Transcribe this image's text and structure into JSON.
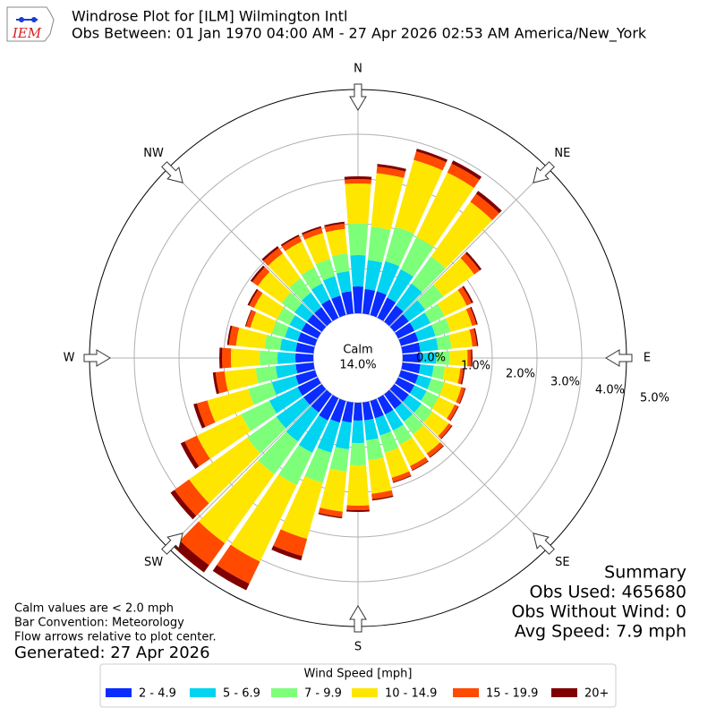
{
  "chart_data": {
    "type": "windrose",
    "title": "Windrose Plot for [ILM] Wilmington Intl",
    "subtitle": "Obs Between: 01 Jan 1970 04:00 AM - 27 Apr 2026 02:53 AM America/New_York",
    "logo_text": "IEM",
    "categories": [
      null,
      null,
      null,
      null,
      null,
      null,
      null,
      null,
      null,
      null,
      null,
      null,
      null,
      null,
      null,
      null,
      null,
      null,
      null,
      null,
      null,
      null,
      null,
      null,
      null,
      null,
      null,
      null,
      null,
      null,
      null,
      null,
      null,
      null,
      null,
      null
    ],
    "compass_labels": [
      "N",
      "NE",
      "E",
      "SE",
      "S",
      "SW",
      "W",
      "NW"
    ],
    "calm_label": "Calm",
    "calm_value_label": "14.0%",
    "ylim": [
      0,
      5
    ],
    "yticks": [
      {
        "value": 0,
        "label": "0.0%"
      },
      {
        "value": 1,
        "label": "1.0%"
      },
      {
        "value": 2,
        "label": "2.0%"
      },
      {
        "value": 3,
        "label": "3.0%"
      },
      {
        "value": 4,
        "label": "4.0%"
      },
      {
        "value": 5,
        "label": "5.0%"
      }
    ],
    "grid": true,
    "legend_title": "Wind Speed [mph]",
    "legend_position": "bottom",
    "series": [
      {
        "name": "2 - 4.9",
        "color": "#0a2cff",
        "values": [
          0.6,
          0.55,
          0.55,
          0.5,
          0.45,
          0.4,
          0.4,
          0.4,
          0.4,
          0.4,
          0.4,
          0.4,
          0.4,
          0.4,
          0.4,
          0.4,
          0.4,
          0.4,
          0.4,
          0.45,
          0.5,
          0.55,
          0.5,
          0.5,
          0.5,
          0.45,
          0.4,
          0.4,
          0.4,
          0.4,
          0.4,
          0.4,
          0.4,
          0.45,
          0.45,
          0.5
        ]
      },
      {
        "name": "5 - 6.9",
        "color": "#00d4f0",
        "values": [
          0.7,
          0.65,
          0.7,
          0.7,
          0.6,
          0.45,
          0.4,
          0.4,
          0.4,
          0.35,
          0.3,
          0.3,
          0.3,
          0.35,
          0.35,
          0.4,
          0.4,
          0.45,
          0.5,
          0.6,
          0.7,
          0.8,
          0.8,
          0.75,
          0.7,
          0.55,
          0.45,
          0.4,
          0.35,
          0.3,
          0.3,
          0.35,
          0.4,
          0.4,
          0.45,
          0.45
        ]
      },
      {
        "name": "7 - 9.9",
        "color": "#7dff7a",
        "values": [
          0.7,
          0.75,
          0.8,
          0.8,
          0.75,
          0.5,
          0.35,
          0.35,
          0.3,
          0.3,
          0.25,
          0.3,
          0.3,
          0.3,
          0.35,
          0.35,
          0.4,
          0.45,
          0.5,
          0.5,
          0.7,
          0.8,
          0.9,
          0.8,
          0.7,
          0.55,
          0.45,
          0.4,
          0.35,
          0.3,
          0.3,
          0.35,
          0.4,
          0.4,
          0.4,
          0.4
        ]
      },
      {
        "name": "10 - 14.9",
        "color": "#ffe600",
        "values": [
          0.9,
          1.2,
          1.55,
          1.6,
          1.5,
          0.85,
          0.55,
          0.5,
          0.47,
          0.4,
          0.35,
          0.4,
          0.4,
          0.45,
          0.53,
          0.53,
          0.58,
          0.75,
          0.9,
          0.9,
          1.3,
          1.9,
          1.9,
          1.6,
          1.1,
          0.95,
          0.7,
          0.64,
          0.64,
          0.5,
          0.58,
          0.66,
          0.68,
          0.64,
          0.6,
          0.55
        ]
      },
      {
        "name": "15 - 19.9",
        "color": "#ff4a00",
        "values": [
          0.1,
          0.15,
          0.2,
          0.22,
          0.22,
          0.15,
          0.12,
          0.1,
          0.1,
          0.08,
          0.07,
          0.08,
          0.08,
          0.08,
          0.1,
          0.1,
          0.1,
          0.12,
          0.1,
          0.12,
          0.4,
          0.55,
          0.6,
          0.4,
          0.3,
          0.24,
          0.2,
          0.2,
          0.16,
          0.1,
          0.12,
          0.15,
          0.15,
          0.13,
          0.12,
          0.12
        ]
      },
      {
        "name": "20+",
        "color": "#800000",
        "values": [
          0.06,
          0.06,
          0.06,
          0.08,
          0.08,
          0.05,
          0.04,
          0.03,
          0.03,
          0.03,
          0.03,
          0.02,
          0.02,
          0.02,
          0.02,
          0.02,
          0.02,
          0.03,
          0.04,
          0.03,
          0.1,
          0.16,
          0.2,
          0.11,
          0.1,
          0.08,
          0.06,
          0.06,
          0.04,
          0.02,
          0.04,
          0.05,
          0.05,
          0.04,
          0.04,
          0.04
        ]
      }
    ],
    "notes": [
      "Calm values are < 2.0 mph",
      "Bar Convention: Meteorology",
      "Flow arrows relative to plot center."
    ],
    "generated": "Generated: 27 Apr 2026",
    "summary": [
      "Summary",
      "Obs Used: 465680",
      "Obs Without Wind: 0",
      "Avg Speed: 7.9 mph"
    ]
  }
}
